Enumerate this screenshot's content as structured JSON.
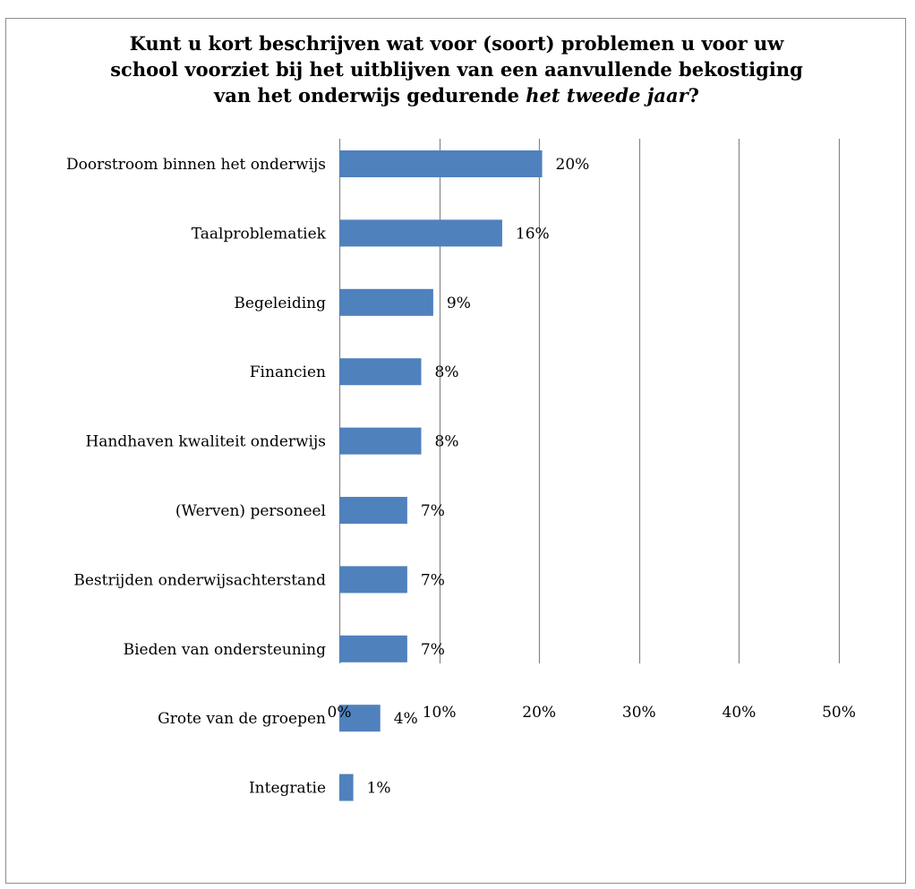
{
  "chart_data": {
    "type": "bar",
    "orientation": "horizontal",
    "title": {
      "line1": "Kunt u kort beschrijven wat voor (soort) problemen u voor uw",
      "line2": "school voorziet bij het uitblijven van een aanvullende bekostiging",
      "line3_prefix": "van het onderwijs gedurende ",
      "line3_italic": "het tweede jaar",
      "line3_suffix": "?"
    },
    "categories": [
      "Doorstroom binnen het onderwijs",
      "Taalproblematiek",
      "Begeleiding",
      "Financien",
      "Handhaven kwaliteit onderwijs",
      "(Werven) personeel",
      "Bestrijden onderwijsachterstand",
      "Bieden van ondersteuning",
      "Grote van de groepen",
      "Integratie"
    ],
    "values": [
      20.3,
      16.3,
      9.4,
      8.2,
      8.2,
      6.8,
      6.8,
      6.8,
      4.1,
      1.4
    ],
    "data_labels": [
      "20%",
      "16%",
      "9%",
      "8%",
      "8%",
      "7%",
      "7%",
      "7%",
      "4%",
      "1%"
    ],
    "xlim": [
      0,
      50
    ],
    "xticks": [
      0,
      10,
      20,
      30,
      40,
      50
    ],
    "xtick_labels": [
      "0%",
      "10%",
      "20%",
      "30%",
      "40%",
      "50%"
    ],
    "xlabel": "",
    "ylabel": "",
    "grid": "vertical",
    "legend": "none",
    "colors": {
      "bar": "#4f81bd",
      "grid": "#868686",
      "text": "#000000"
    }
  }
}
